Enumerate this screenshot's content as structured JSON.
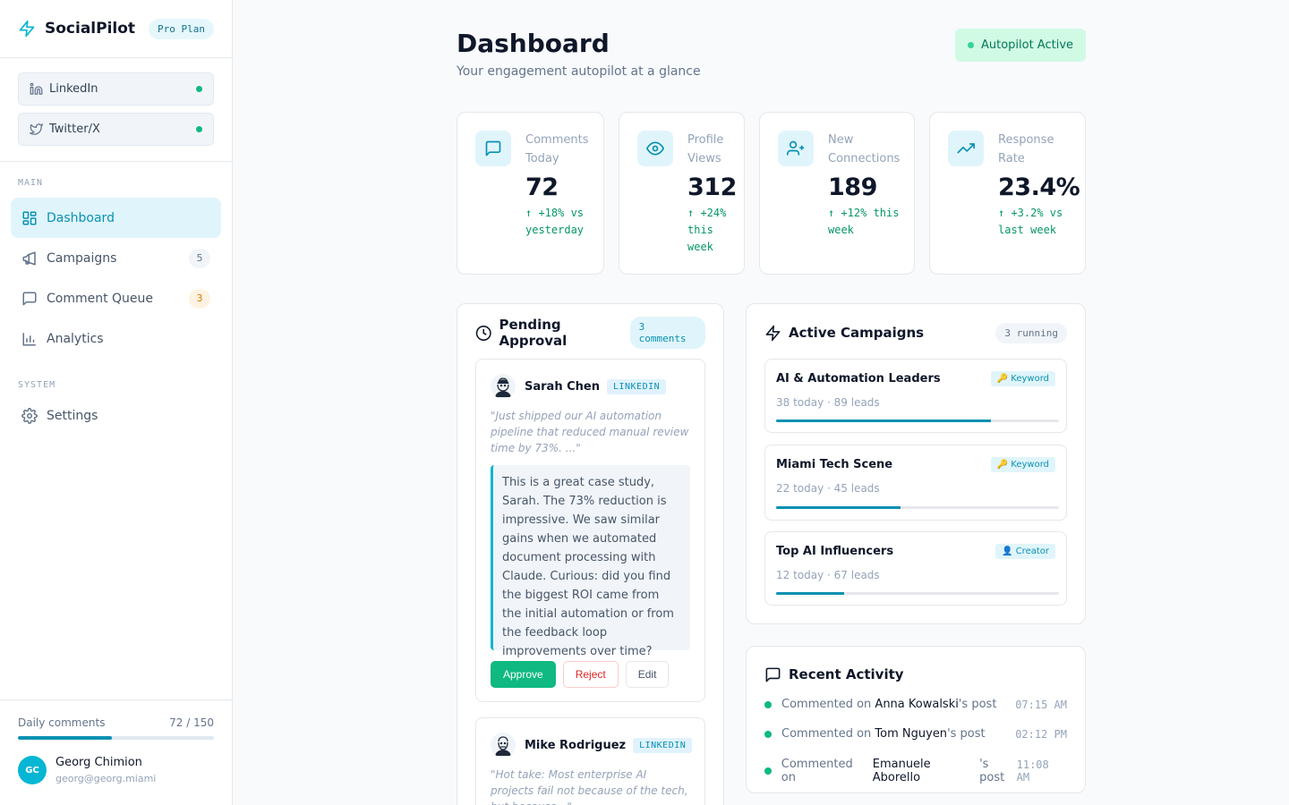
{
  "sidebar": {
    "brand": "SocialPilot",
    "plan": "Pro Plan",
    "accounts": [
      {
        "label": "LinkedIn",
        "icon": "linkedin-icon"
      },
      {
        "label": "Twitter/X",
        "icon": "twitter-icon"
      }
    ],
    "main_label": "MAIN",
    "system_label": "SYSTEM",
    "nav": [
      {
        "label": "Dashboard",
        "icon": "dashboard-icon"
      },
      {
        "label": "Campaigns",
        "count": "5",
        "icon": "megaphone-icon"
      },
      {
        "label": "Comment Queue",
        "count": "3",
        "icon": "comment-icon"
      },
      {
        "label": "Analytics",
        "icon": "chart-icon"
      }
    ],
    "settings": "Settings",
    "usage": {
      "label": "Daily comments",
      "value": "72 / 150",
      "fraction": 0.48
    },
    "user": {
      "initials": "GC",
      "name": "Georg Chimion",
      "email": "georg@georg.miami"
    }
  },
  "header": {
    "title": "Dashboard",
    "subtitle": "Your engagement autopilot at a glance",
    "status": "Autopilot Active"
  },
  "stats": [
    {
      "label": "Comments Today",
      "value": "72",
      "delta": "↑ +18% vs yesterday",
      "icon": "comment-icon"
    },
    {
      "label": "Profile Views",
      "value": "312",
      "delta": "↑ +24% this week",
      "icon": "eye-icon"
    },
    {
      "label": "New Connections",
      "value": "189",
      "delta": "↑ +12% this week",
      "icon": "user-plus-icon"
    },
    {
      "label": "Response Rate",
      "value": "23.4%",
      "delta": "↑ +3.2% vs last week",
      "icon": "trending-up-icon"
    }
  ],
  "pending": {
    "title": "Pending Approval",
    "count": "3 comments",
    "items": [
      {
        "author": "Sarah Chen",
        "platform": "LINKEDIN",
        "quote": "\"Just shipped our AI automation pipeline that reduced manual review time by 73%. ...\"",
        "reply": "This is a great case study, Sarah. The 73% reduction is impressive. We saw similar gains when we automated document processing with Claude. Curious: did you find the biggest ROI came from the initial automation or from the feedback loop improvements over time?",
        "approve": "Approve",
        "reject": "Reject",
        "edit": "Edit"
      },
      {
        "author": "Mike Rodriguez",
        "platform": "LINKEDIN",
        "quote": "\"Hot take: Most enterprise AI projects fail not because of the tech, but because...\""
      }
    ]
  },
  "campaigns": {
    "title": "Active Campaigns",
    "count": "3 running",
    "items": [
      {
        "name": "AI & Automation Leaders",
        "type": "🔑 Keyword",
        "meta": "38 today · 89 leads",
        "progress": 0.76
      },
      {
        "name": "Miami Tech Scene",
        "type": "🔑 Keyword",
        "meta": "22 today · 45 leads",
        "progress": 0.44
      },
      {
        "name": "Top AI Influencers",
        "type": "👤 Creator",
        "meta": "12 today · 67 leads",
        "progress": 0.24
      }
    ]
  },
  "activity": {
    "title": "Recent Activity",
    "items": [
      {
        "prefix": "Commented on ",
        "who": "Anna Kowalski",
        "suffix": "'s post",
        "time": "07:15 AM"
      },
      {
        "prefix": "Commented on ",
        "who": "Tom Nguyen",
        "suffix": "'s post",
        "time": "02:12 PM"
      },
      {
        "prefix": "Commented on ",
        "who": "Emanuele Aborello",
        "suffix": "'s post",
        "time": "11:08 AM"
      }
    ]
  },
  "colors": {
    "accent": "#06b6d4",
    "accent_dark": "#0891b2",
    "success": "#10b981",
    "danger": "#dc2626",
    "warning": "#d97706"
  }
}
